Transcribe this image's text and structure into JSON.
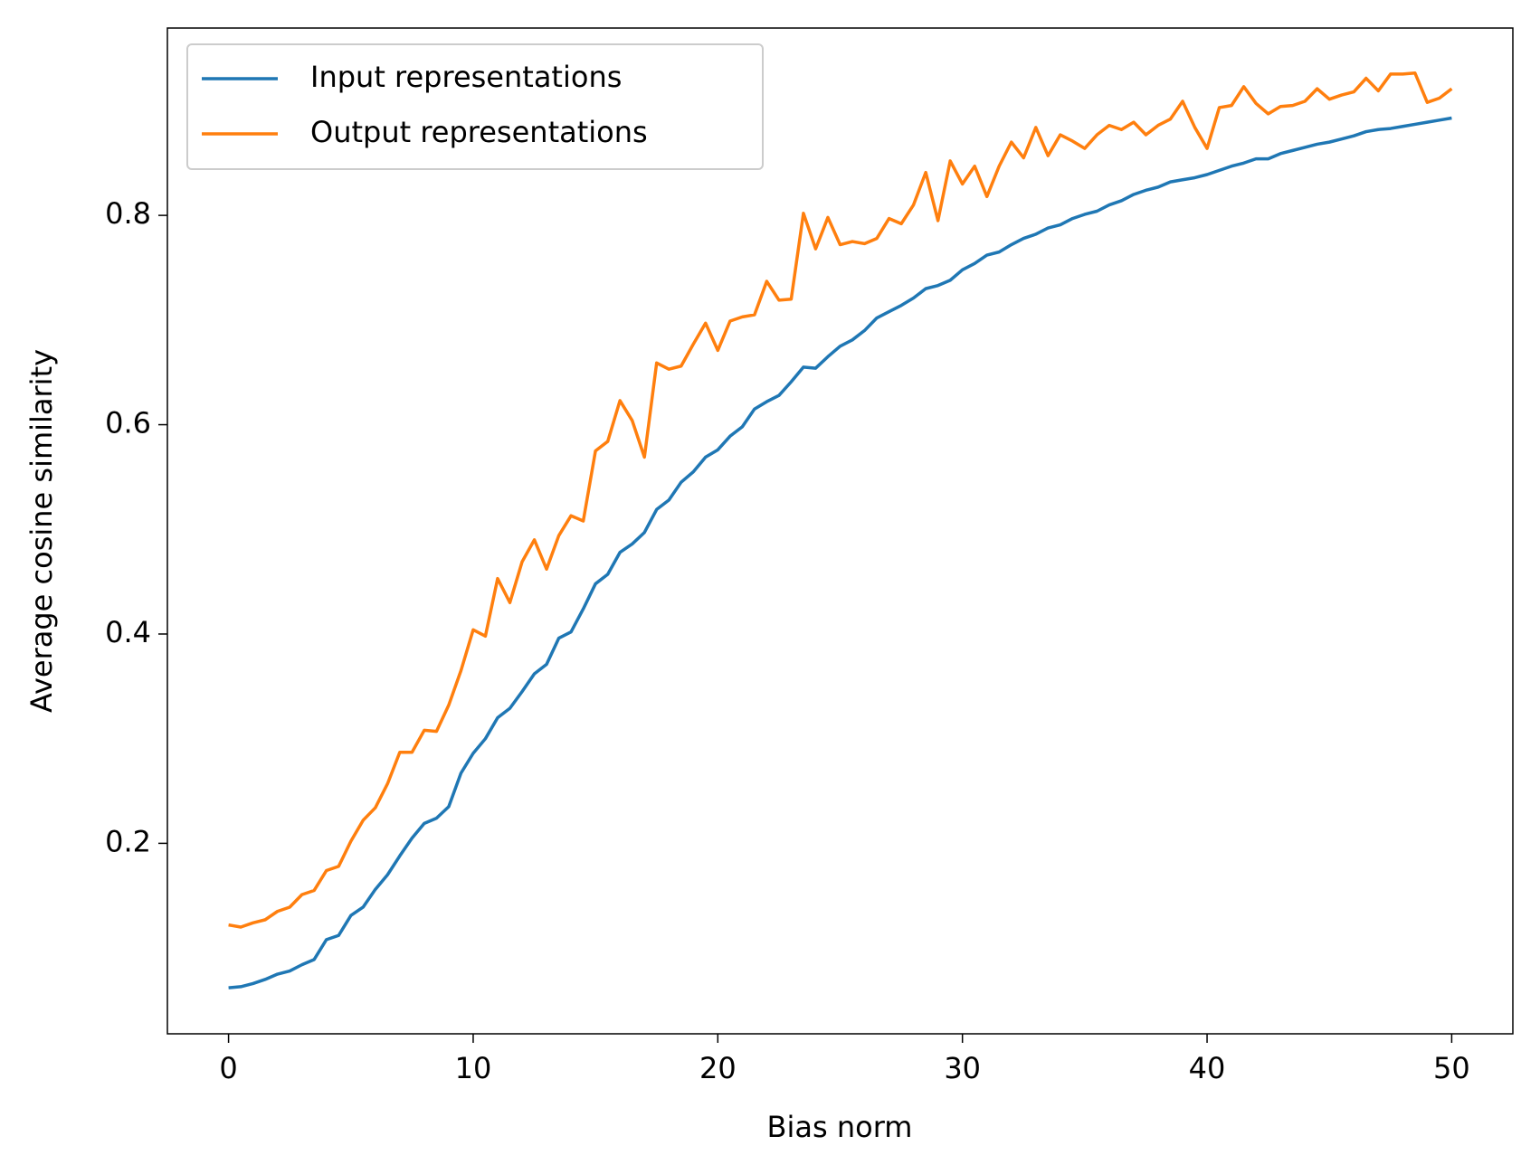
{
  "chart_data": {
    "type": "line",
    "xlabel": "Bias norm",
    "ylabel": "Average cosine similarity",
    "x": [
      0,
      0.5,
      1,
      1.5,
      2,
      2.5,
      3,
      3.5,
      4,
      4.5,
      5,
      5.5,
      6,
      6.5,
      7,
      7.5,
      8,
      8.5,
      9,
      9.5,
      10,
      10.5,
      11,
      11.5,
      12,
      12.5,
      13,
      13.5,
      14,
      14.5,
      15,
      15.5,
      16,
      16.5,
      17,
      17.5,
      18,
      18.5,
      19,
      19.5,
      20,
      20.5,
      21,
      21.5,
      22,
      22.5,
      23,
      23.5,
      24,
      24.5,
      25,
      25.5,
      26,
      26.5,
      27,
      27.5,
      28,
      28.5,
      29,
      29.5,
      30,
      30.5,
      31,
      31.5,
      32,
      32.5,
      33,
      33.5,
      34,
      34.5,
      35,
      35.5,
      36,
      36.5,
      37,
      37.5,
      38,
      38.5,
      39,
      39.5,
      40,
      40.5,
      41,
      41.5,
      42,
      42.5,
      43,
      43.5,
      44,
      44.5,
      45,
      45.5,
      46,
      46.5,
      47,
      47.5,
      48,
      48.5,
      49,
      49.5,
      50
    ],
    "series": [
      {
        "name": "Input representations",
        "color": "#1f77b4",
        "values": [
          0.062,
          0.063,
          0.066,
          0.07,
          0.075,
          0.078,
          0.084,
          0.089,
          0.108,
          0.112,
          0.131,
          0.139,
          0.156,
          0.17,
          0.188,
          0.205,
          0.219,
          0.224,
          0.235,
          0.267,
          0.286,
          0.3,
          0.32,
          0.329,
          0.345,
          0.362,
          0.371,
          0.396,
          0.402,
          0.424,
          0.448,
          0.457,
          0.478,
          0.486,
          0.497,
          0.519,
          0.528,
          0.545,
          0.555,
          0.569,
          0.576,
          0.589,
          0.598,
          0.615,
          0.622,
          0.628,
          0.641,
          0.655,
          0.654,
          0.665,
          0.675,
          0.681,
          0.69,
          0.702,
          0.708,
          0.714,
          0.721,
          0.73,
          0.733,
          0.738,
          0.748,
          0.754,
          0.762,
          0.765,
          0.772,
          0.778,
          0.782,
          0.788,
          0.791,
          0.797,
          0.801,
          0.804,
          0.81,
          0.814,
          0.82,
          0.824,
          0.827,
          0.832,
          0.834,
          0.836,
          0.839,
          0.843,
          0.847,
          0.85,
          0.854,
          0.854,
          0.859,
          0.862,
          0.865,
          0.868,
          0.87,
          0.873,
          0.876,
          0.88,
          0.882,
          0.883,
          0.885,
          0.887,
          0.889,
          0.891,
          0.893
        ]
      },
      {
        "name": "Output representations",
        "color": "#ff7f0e",
        "values": [
          0.122,
          0.12,
          0.124,
          0.127,
          0.135,
          0.139,
          0.151,
          0.155,
          0.174,
          0.178,
          0.202,
          0.222,
          0.234,
          0.257,
          0.287,
          0.287,
          0.308,
          0.307,
          0.332,
          0.365,
          0.404,
          0.398,
          0.453,
          0.43,
          0.469,
          0.49,
          0.462,
          0.494,
          0.513,
          0.508,
          0.575,
          0.584,
          0.623,
          0.604,
          0.569,
          0.659,
          0.653,
          0.656,
          0.677,
          0.697,
          0.671,
          0.699,
          0.703,
          0.705,
          0.737,
          0.719,
          0.72,
          0.802,
          0.768,
          0.798,
          0.772,
          0.775,
          0.773,
          0.778,
          0.797,
          0.792,
          0.81,
          0.841,
          0.795,
          0.852,
          0.83,
          0.847,
          0.818,
          0.847,
          0.87,
          0.855,
          0.884,
          0.857,
          0.877,
          0.871,
          0.864,
          0.877,
          0.886,
          0.882,
          0.889,
          0.877,
          0.886,
          0.892,
          0.909,
          0.884,
          0.864,
          0.903,
          0.905,
          0.923,
          0.907,
          0.897,
          0.904,
          0.905,
          0.909,
          0.921,
          0.911,
          0.915,
          0.918,
          0.931,
          0.919,
          0.935,
          0.935,
          0.936,
          0.908,
          0.912,
          0.921
        ]
      }
    ],
    "xlim": [
      -2.5,
      52.5
    ],
    "ylim": [
      0.018,
      0.979
    ],
    "xticks": [
      0,
      10,
      20,
      30,
      40,
      50
    ],
    "yticks": [
      0.2,
      0.4,
      0.6,
      0.8
    ],
    "grid": false,
    "legend": "upper left"
  }
}
